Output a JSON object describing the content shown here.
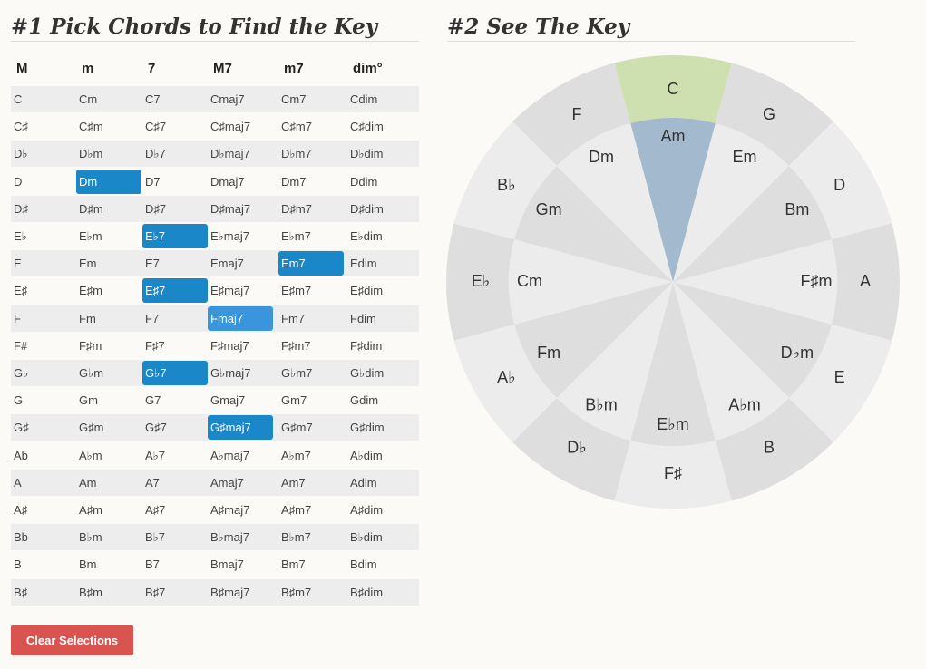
{
  "left": {
    "title": "#1 Pick Chords to Find the Key",
    "table": {
      "headers": [
        "M",
        "m",
        "7",
        "M7",
        "m7",
        "dim°"
      ],
      "rows": [
        [
          "C",
          "Cm",
          "C7",
          "Cmaj7",
          "Cm7",
          "Cdim"
        ],
        [
          "C♯",
          "C♯m",
          "C♯7",
          "C♯maj7",
          "C♯m7",
          "C♯dim"
        ],
        [
          "D♭",
          "D♭m",
          "D♭7",
          "D♭maj7",
          "D♭m7",
          "D♭dim"
        ],
        [
          "D",
          "Dm",
          "D7",
          "Dmaj7",
          "Dm7",
          "Ddim"
        ],
        [
          "D♯",
          "D♯m",
          "D♯7",
          "D♯maj7",
          "D♯m7",
          "D♯dim"
        ],
        [
          "E♭",
          "E♭m",
          "E♭7",
          "E♭maj7",
          "E♭m7",
          "E♭dim"
        ],
        [
          "E",
          "Em",
          "E7",
          "Emaj7",
          "Em7",
          "Edim"
        ],
        [
          "E♯",
          "E♯m",
          "E♯7",
          "E♯maj7",
          "E♯m7",
          "E♯dim"
        ],
        [
          "F",
          "Fm",
          "F7",
          "Fmaj7",
          "Fm7",
          "Fdim"
        ],
        [
          "F#",
          "F♯m",
          "F♯7",
          "F♯maj7",
          "F♯m7",
          "F♯dim"
        ],
        [
          "G♭",
          "G♭m",
          "G♭7",
          "G♭maj7",
          "G♭m7",
          "G♭dim"
        ],
        [
          "G",
          "Gm",
          "G7",
          "Gmaj7",
          "Gm7",
          "Gdim"
        ],
        [
          "G♯",
          "G♯m",
          "G♯7",
          "G♯maj7",
          "G♯m7",
          "G♯dim"
        ],
        [
          "Ab",
          "A♭m",
          "A♭7",
          "A♭maj7",
          "A♭m7",
          "A♭dim"
        ],
        [
          "A",
          "Am",
          "A7",
          "Amaj7",
          "Am7",
          "Adim"
        ],
        [
          "A♯",
          "A♯m",
          "A♯7",
          "A♯maj7",
          "A♯m7",
          "A♯dim"
        ],
        [
          "Bb",
          "B♭m",
          "B♭7",
          "B♭maj7",
          "B♭m7",
          "B♭dim"
        ],
        [
          "B",
          "Bm",
          "B7",
          "Bmaj7",
          "Bm7",
          "Bdim"
        ],
        [
          "B♯",
          "B♯m",
          "B♯7",
          "B♯maj7",
          "B♯m7",
          "B♯dim"
        ]
      ]
    },
    "button": "Clear Selections"
  },
  "right": {
    "title": "#2 See The Key",
    "circle": {
      "majors": [
        "C",
        "G",
        "D",
        "A",
        "E",
        "B",
        "F♯",
        "D♭",
        "A♭",
        "E♭",
        "B♭",
        "F"
      ],
      "minors": [
        "Am",
        "Em",
        "Bm",
        "F♯m",
        "D♭m",
        "A♭m",
        "E♭m",
        "B♭m",
        "Fm",
        "Cm",
        "Gm",
        "Dm"
      ]
    }
  }
}
